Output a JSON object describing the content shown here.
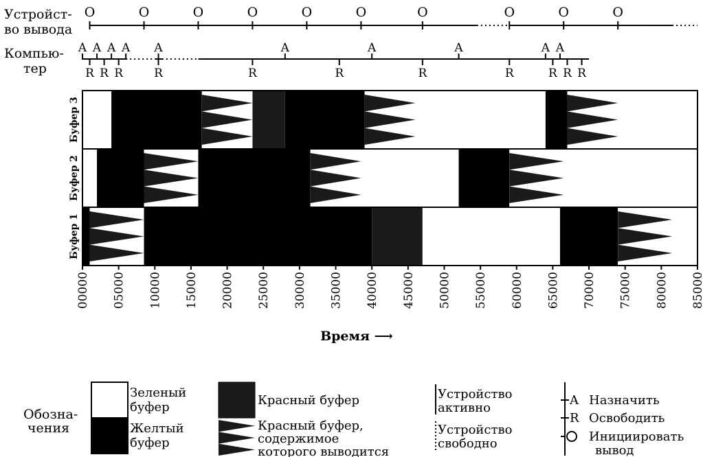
{
  "timeline": {
    "output_label_1": "Устройст-",
    "output_label_2": "во вывода",
    "computer_label_1": "Компью-",
    "computer_label_2": "тер",
    "output_marker": "O",
    "assign_marker": "A",
    "release_marker": "R"
  },
  "chart_data": {
    "type": "timeline",
    "xlabel": "Время ⟶",
    "xlim": [
      0,
      85000
    ],
    "ticks": [
      0,
      5000,
      10000,
      15000,
      20000,
      25000,
      30000,
      35000,
      40000,
      45000,
      50000,
      55000,
      60000,
      65000,
      70000,
      75000,
      80000,
      85000
    ],
    "tick_labels": [
      "00000",
      "05000",
      "10000",
      "15000",
      "20000",
      "25000",
      "30000",
      "35000",
      "40000",
      "45000",
      "50000",
      "55000",
      "60000",
      "65000",
      "70000",
      "75000",
      "80000",
      "85000"
    ],
    "output_events": [
      1000,
      8500,
      16000,
      23500,
      31000,
      38500,
      47000,
      59000,
      66500,
      74000
    ],
    "output_segments": [
      {
        "from": 1000,
        "to": 47000,
        "state": "active"
      },
      {
        "from": 47000,
        "to": 54500,
        "state": "active"
      },
      {
        "from": 54500,
        "to": 59000,
        "state": "idle"
      },
      {
        "from": 59000,
        "to": 77500,
        "state": "active"
      },
      {
        "from": 77500,
        "to": 81500,
        "state": "active"
      },
      {
        "from": 81500,
        "to": 85000,
        "state": "idle"
      }
    ],
    "assign_events": [
      0,
      2000,
      4000,
      6000,
      10500,
      28000,
      40000,
      52000,
      64000,
      66000
    ],
    "release_events": [
      1000,
      3000,
      5000,
      10500,
      23500,
      35500,
      47000,
      59000,
      65000,
      67000,
      69000
    ],
    "computer_segments": [
      {
        "from": 0,
        "to": 6000,
        "state": "active"
      },
      {
        "from": 6000,
        "to": 10000,
        "state": "idle"
      },
      {
        "from": 10000,
        "to": 11000,
        "state": "active"
      },
      {
        "from": 11000,
        "to": 16000,
        "state": "idle"
      },
      {
        "from": 16000,
        "to": 70000,
        "state": "active"
      }
    ],
    "buffers": [
      {
        "name": "Буфер 3",
        "intervals": [
          {
            "from": 0,
            "to": 4000,
            "state": "green"
          },
          {
            "from": 4000,
            "to": 16500,
            "state": "yellow"
          },
          {
            "from": 16500,
            "to": 23500,
            "state": "red_output"
          },
          {
            "from": 23500,
            "to": 28000,
            "state": "red"
          },
          {
            "from": 28000,
            "to": 39000,
            "state": "yellow"
          },
          {
            "from": 39000,
            "to": 46000,
            "state": "red_output"
          },
          {
            "from": 46000,
            "to": 64000,
            "state": "green"
          },
          {
            "from": 64000,
            "to": 67000,
            "state": "yellow"
          },
          {
            "from": 67000,
            "to": 74000,
            "state": "red_output"
          },
          {
            "from": 74000,
            "to": 85000,
            "state": "green"
          }
        ]
      },
      {
        "name": "Буфер 2",
        "intervals": [
          {
            "from": 0,
            "to": 2000,
            "state": "green"
          },
          {
            "from": 2000,
            "to": 8500,
            "state": "yellow"
          },
          {
            "from": 8500,
            "to": 16000,
            "state": "red_output"
          },
          {
            "from": 16000,
            "to": 31500,
            "state": "yellow"
          },
          {
            "from": 31500,
            "to": 38500,
            "state": "red_output"
          },
          {
            "from": 38500,
            "to": 52000,
            "state": "green"
          },
          {
            "from": 52000,
            "to": 59000,
            "state": "yellow"
          },
          {
            "from": 59000,
            "to": 66500,
            "state": "red_output"
          },
          {
            "from": 66500,
            "to": 85000,
            "state": "green"
          }
        ]
      },
      {
        "name": "Буфер 1",
        "intervals": [
          {
            "from": 0,
            "to": 1000,
            "state": "yellow"
          },
          {
            "from": 1000,
            "to": 8500,
            "state": "red_output"
          },
          {
            "from": 8500,
            "to": 40000,
            "state": "yellow"
          },
          {
            "from": 40000,
            "to": 47000,
            "state": "red"
          },
          {
            "from": 47000,
            "to": 66000,
            "state": "green"
          },
          {
            "from": 66000,
            "to": 74000,
            "state": "yellow"
          },
          {
            "from": 74000,
            "to": 81500,
            "state": "red_output"
          },
          {
            "from": 81500,
            "to": 85000,
            "state": "green"
          }
        ]
      }
    ]
  },
  "legend": {
    "title_1": "Обозна-",
    "title_2": "чения",
    "green_1": "Зеленый",
    "green_2": "буфер",
    "yellow_1": "Желтый",
    "yellow_2": "буфер",
    "red": "Красный буфер",
    "red_output_1": "Красный буфер,",
    "red_output_2": "содержимое",
    "red_output_3": "которого выводится",
    "device_active_1": "Устройство",
    "device_active_2": "активно",
    "device_idle_1": "Устройство",
    "device_idle_2": "свободно",
    "assign_letter": "A",
    "assign_text": "Назначить",
    "release_letter": "R",
    "release_text": "Освободить",
    "output_letter": "O",
    "output_text_1": "Инициировать",
    "output_text_2": "вывод"
  },
  "colors": {
    "green_buffer": "#ffffff",
    "yellow_buffer": "#000000",
    "red_buffer": "#1a1a1a",
    "ink": "#000000"
  }
}
